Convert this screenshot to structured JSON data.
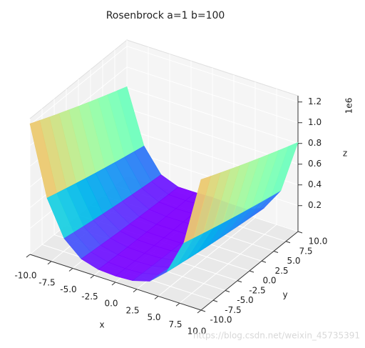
{
  "chart_data": {
    "type": "surface3d",
    "title": "Rosenbrock a=1 b=100",
    "xlabel": "x",
    "ylabel": "y",
    "zlabel": "z",
    "zoffset": "1e6",
    "watermark": "https://blog.csdn.net/weixin_45735391",
    "colormap": "rainbow",
    "grid": true,
    "x": [
      -10,
      -8,
      -6,
      -4,
      -2,
      0,
      2,
      4,
      6,
      8,
      10
    ],
    "y": [
      -10,
      -8,
      -6,
      -4,
      -2,
      0,
      2,
      4,
      6,
      8,
      10
    ],
    "z": [
      [
        1210121,
        1166521,
        1123721,
        1081721,
        1040521,
        1000121,
        960521,
        921721,
        883721,
        846521,
        810121
      ],
      [
        547681,
        518481,
        490081,
        462481,
        435681,
        409681,
        384481,
        360081,
        336481,
        313681,
        291681
      ],
      [
        211649,
        193649,
        176449,
        160049,
        144449,
        129649,
        115649,
        102449,
        90049,
        78449,
        67649
      ],
      [
        67625,
        57625,
        48425,
        40025,
        32425,
        25625,
        19625,
        14425,
        10025,
        6425,
        3625
      ],
      [
        19609,
        14409,
        10009,
        6409,
        3609,
        1609,
        409,
        9,
        409,
        1609,
        3609
      ],
      [
        10001,
        6401,
        3601,
        1601,
        401,
        1,
        401,
        1601,
        3601,
        6401,
        10001
      ],
      [
        19601,
        14401,
        10001,
        6401,
        3601,
        1601,
        401,
        1,
        401,
        1601,
        3601
      ],
      [
        67609,
        57609,
        48409,
        40009,
        32409,
        25609,
        19609,
        14409,
        10009,
        6409,
        3609
      ],
      [
        211625,
        193625,
        176425,
        160025,
        144425,
        129625,
        115625,
        102425,
        90025,
        78425,
        67625
      ],
      [
        547649,
        518449,
        490049,
        462449,
        435649,
        409649,
        384449,
        360049,
        336449,
        313649,
        291649
      ],
      [
        1210081,
        1166481,
        1123681,
        1081681,
        1040481,
        1000081,
        960481,
        921681,
        883681,
        846481,
        810081
      ]
    ],
    "xlim": [
      -10,
      10
    ],
    "ylim": [
      -10,
      10
    ],
    "zlim": [
      -50000,
      1260000
    ],
    "xticks": [
      {
        "value": -10,
        "label": "-10.0"
      },
      -7.5,
      {
        "value": -5,
        "label": "-5.0"
      },
      -2.5,
      {
        "value": 0,
        "label": "0.0"
      },
      2.5,
      {
        "value": 5,
        "label": "5.0"
      },
      7.5,
      {
        "value": 10,
        "label": "10.0"
      }
    ],
    "yticks": [
      {
        "value": -10,
        "label": "-10.0"
      },
      -7.5,
      {
        "value": -5,
        "label": "-5.0"
      },
      -2.5,
      {
        "value": 0,
        "label": "0.0"
      },
      2.5,
      {
        "value": 5,
        "label": "5.0"
      },
      7.5,
      {
        "value": 10,
        "label": "10.0"
      }
    ],
    "zticks": [
      {
        "value": 200000,
        "label": "0.2"
      },
      {
        "value": 400000,
        "label": "0.4"
      },
      {
        "value": 600000,
        "label": "0.6"
      },
      {
        "value": 800000,
        "label": "0.8"
      },
      {
        "value": 1000000,
        "label": "1.0"
      },
      {
        "value": 1200000,
        "label": "1.2"
      }
    ]
  }
}
